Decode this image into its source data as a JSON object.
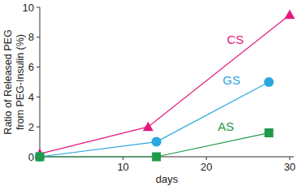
{
  "chart_data": {
    "type": "line",
    "x_label": "days",
    "y_label": [
      "Ratio of Released PEG",
      "from PEG-Insulin (%)"
    ],
    "xlim": [
      0,
      30.5
    ],
    "xticks": [
      10,
      20,
      30
    ],
    "ylim": [
      0,
      10
    ],
    "yticks": [
      0,
      2,
      4,
      6,
      8,
      10
    ],
    "grid": false,
    "series": [
      {
        "name": "CS",
        "color": "#e2197e",
        "marker": "triangle",
        "x": [
          0,
          13,
          30
        ],
        "values": [
          0.2,
          2,
          9.5
        ]
      },
      {
        "name": "GS",
        "color": "#2aa7df",
        "marker": "circle",
        "x": [
          0,
          14,
          27.5
        ],
        "values": [
          0,
          1,
          5
        ]
      },
      {
        "name": "AS",
        "color": "#1f9a48",
        "marker": "square",
        "x": [
          0,
          14,
          27.5
        ],
        "values": [
          0,
          0,
          1.6
        ]
      }
    ]
  }
}
